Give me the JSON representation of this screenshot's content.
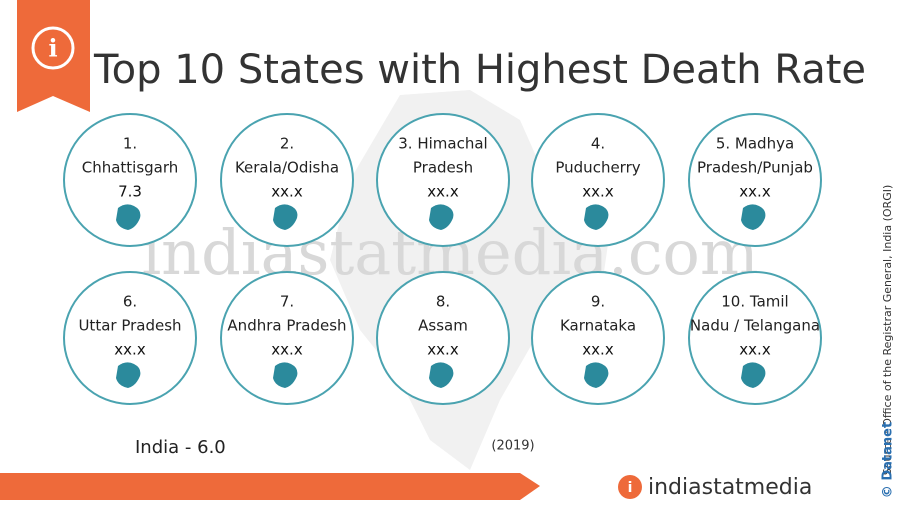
{
  "header": {
    "title": "Top 10 States with Highest Death Rate"
  },
  "items": [
    {
      "label_lines": [
        "1.",
        "Chhattisgarh"
      ],
      "value": "7.3"
    },
    {
      "label_lines": [
        "2.",
        "Kerala/Odisha"
      ],
      "value": "xx.x"
    },
    {
      "label_lines": [
        "3. Himachal",
        "Pradesh"
      ],
      "value": "xx.x"
    },
    {
      "label_lines": [
        "4.",
        "Puducherry"
      ],
      "value": "xx.x"
    },
    {
      "label_lines": [
        "5. Madhya",
        "Pradesh/Punjab"
      ],
      "value": "xx.x"
    },
    {
      "label_lines": [
        "6.",
        "Uttar Pradesh"
      ],
      "value": "xx.x"
    },
    {
      "label_lines": [
        "7.",
        "Andhra Pradesh"
      ],
      "value": "xx.x"
    },
    {
      "label_lines": [
        "8.",
        "Assam"
      ],
      "value": "xx.x"
    },
    {
      "label_lines": [
        "9.",
        "Karnataka"
      ],
      "value": "xx.x"
    },
    {
      "label_lines": [
        "10. Tamil",
        "Nadu / Telangana"
      ],
      "value": "xx.x"
    }
  ],
  "footer": {
    "india": "India - 6.0",
    "year": "(2019)",
    "source": "Source : Office of the Registrar General, India (ORGI)",
    "copyright": "© Datanet",
    "brand": "indiastatmedia",
    "watermark": "indiastatmedia.com"
  }
}
